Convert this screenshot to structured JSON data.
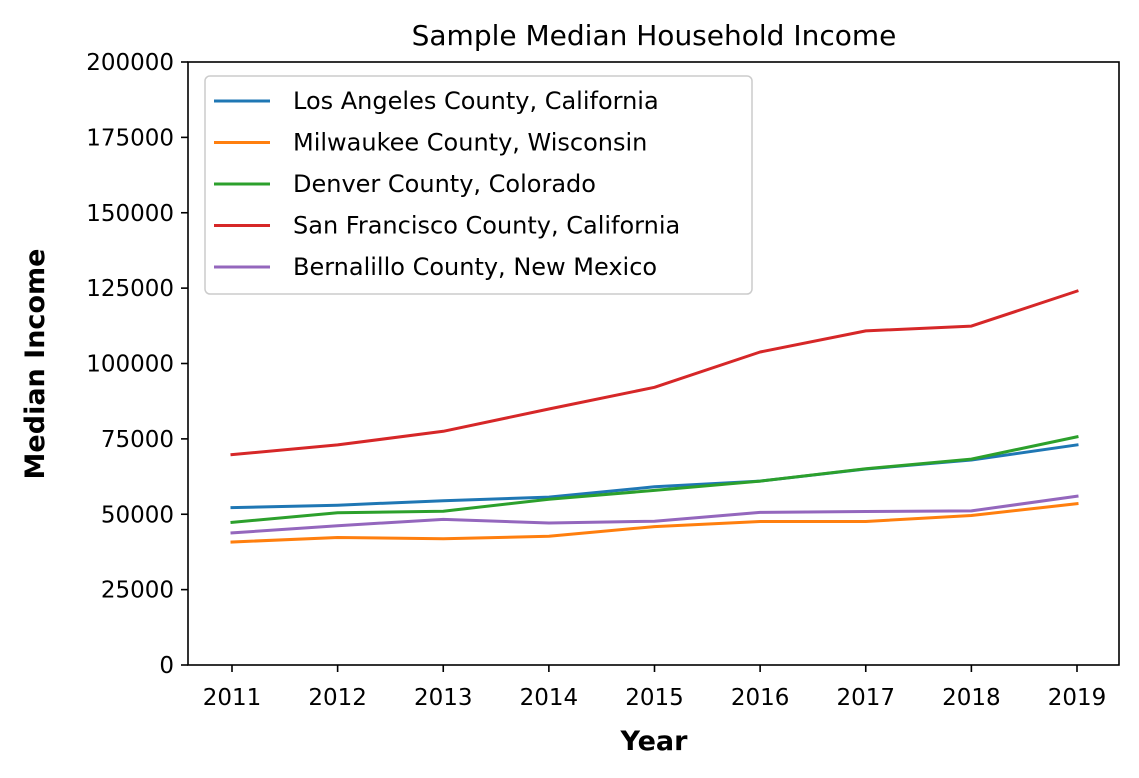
{
  "chart_data": {
    "type": "line",
    "title": "Sample Median Household Income",
    "xlabel": "Year",
    "ylabel": "Median Income",
    "x": [
      "2011",
      "2012",
      "2013",
      "2014",
      "2015",
      "2016",
      "2017",
      "2018",
      "2019"
    ],
    "ylim": [
      0,
      200000
    ],
    "yticks": [
      "0",
      "25000",
      "50000",
      "75000",
      "100000",
      "125000",
      "150000",
      "175000",
      "200000"
    ],
    "grid": false,
    "legend_position": "top-left",
    "series": [
      {
        "name": "Los Angeles County, California",
        "color": "#1f77b4",
        "values": [
          52200,
          53000,
          54500,
          55700,
          59100,
          61000,
          65000,
          68000,
          73000
        ]
      },
      {
        "name": "Milwaukee County, Wisconsin",
        "color": "#ff7f0e",
        "values": [
          40800,
          42300,
          41900,
          42700,
          45900,
          47600,
          47600,
          49600,
          53500
        ]
      },
      {
        "name": "Denver County, Colorado",
        "color": "#2ca02c",
        "values": [
          47300,
          50500,
          51000,
          55000,
          57900,
          61000,
          65100,
          68300,
          75700
        ]
      },
      {
        "name": "San Francisco County, California",
        "color": "#d62728",
        "values": [
          69800,
          73000,
          77500,
          84900,
          92100,
          103800,
          110800,
          112400,
          124000
        ]
      },
      {
        "name": "Bernalillo County, New Mexico",
        "color": "#9467bd",
        "values": [
          43800,
          46200,
          48300,
          47100,
          47700,
          50600,
          50900,
          51100,
          56000
        ]
      }
    ]
  }
}
